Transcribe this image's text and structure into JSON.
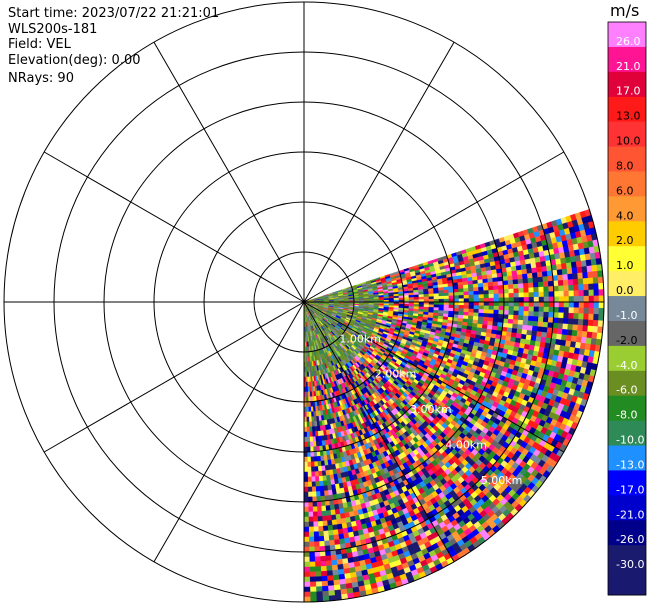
{
  "header": {
    "start_time": "Start time: 2023/07/22 21:21:01",
    "instrument": "WLS200s-181",
    "field": "Field: VEL",
    "elevation": "Elevation(deg): 0.00",
    "nrays": "NRays: 90"
  },
  "chart_data": {
    "type": "heatmap",
    "projection": "polar",
    "field": "VEL",
    "units": "m/s",
    "elevation_deg": 0.0,
    "n_rays": 90,
    "sector_azimuth_deg": [
      72,
      180
    ],
    "range_rings_km": [
      1.0,
      2.0,
      3.0,
      4.0,
      5.0
    ],
    "range_ring_labels": [
      "1.00km",
      "2.00km",
      "3.00km",
      "4.00km",
      "5.00km"
    ],
    "max_range_km": 6.0,
    "spoke_interval_deg": 30,
    "colorbar": {
      "min": -30.0,
      "max": 30.0,
      "ticks": [
        "26.0",
        "21.0",
        "17.0",
        "13.0",
        "10.0",
        "8.0",
        "6.0",
        "4.0",
        "2.0",
        "1.0",
        "0.0",
        "-1.0",
        "-2.0",
        "-4.0",
        "-6.0",
        "-8.0",
        "-10.0",
        "-13.0",
        "-17.0",
        "-21.0",
        "-26.0",
        "-30.0"
      ],
      "colors": [
        "#ff80ff",
        "#ff1493",
        "#e0003a",
        "#ff1a1a",
        "#ff3333",
        "#ff5533",
        "#ff7733",
        "#ff9933",
        "#ffcc00",
        "#ffff33",
        "#ffee66",
        "#778899",
        "#666666",
        "#9acd32",
        "#6b8e23",
        "#228b22",
        "#2e8b57",
        "#1e90ff",
        "#0000ff",
        "#0000cd",
        "#00008b",
        "#1a1a6e",
        "#191970"
      ]
    },
    "near_range_km": 1.5,
    "near_range_dominant_velocity": -3.0
  }
}
